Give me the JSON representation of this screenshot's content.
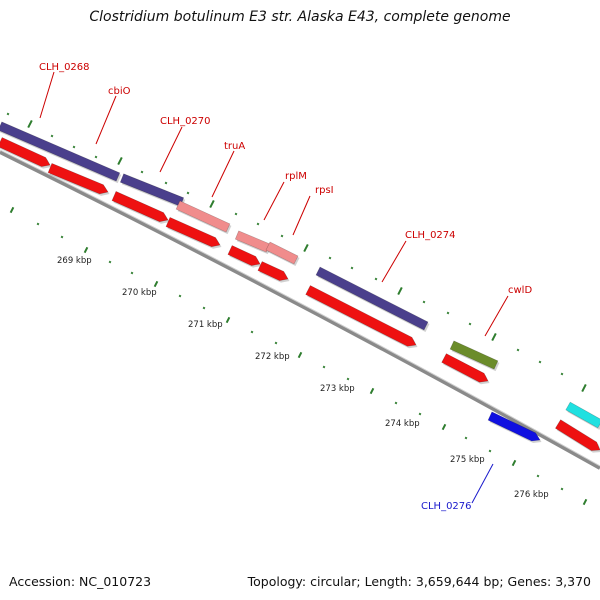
{
  "title": "Clostridium botulinum E3 str. Alaska E43, complete genome",
  "footer": {
    "accession": "Accession: NC_010723",
    "summary": "Topology: circular; Length: 3,659,644 bp; Genes: 3,370"
  },
  "colors": {
    "backbone": "#8a8a8a",
    "tick": "#2e7d2e",
    "label_default": "#cc0000",
    "label_reverse": "#1a1acc"
  },
  "genes": [
    {
      "label": "CLH_0268",
      "color": "#4a3f8c"
    },
    {
      "label": "cbiO",
      "color": "#4a3f8c"
    },
    {
      "label": "CLH_0270",
      "color": "#4a3f8c"
    },
    {
      "label": "truA",
      "color": "#f08c8c"
    },
    {
      "label": "rplM",
      "color": "#f08c8c"
    },
    {
      "label": "rpsI",
      "color": "#f08c8c"
    },
    {
      "label": "CLH_0274",
      "color": "#4a3f8c"
    },
    {
      "label": "cwlD",
      "color": "#6b8c2a"
    },
    {
      "label": "CLH_0276",
      "color": "#1010e0"
    },
    {
      "label": "",
      "color": "#20e0e0"
    }
  ],
  "kbp_labels": [
    "269 kbp",
    "270 kbp",
    "271 kbp",
    "272 kbp",
    "273 kbp",
    "274 kbp",
    "275 kbp",
    "276 kbp"
  ]
}
